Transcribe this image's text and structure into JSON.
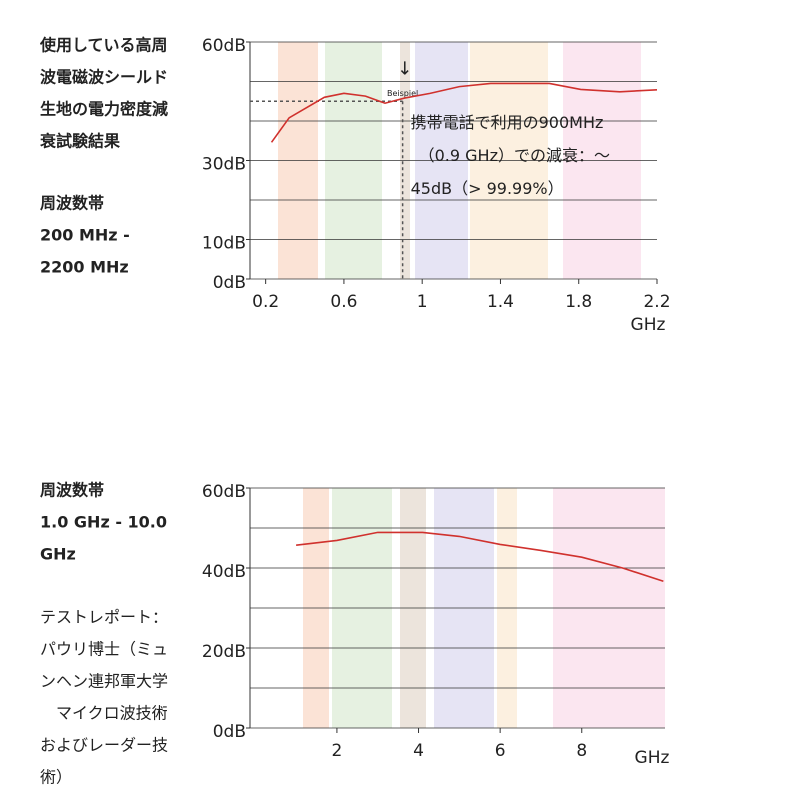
{
  "section1": {
    "title_lines": [
      "使用している高周",
      "波電磁波シールド",
      "生地の電力密度減",
      "衰試験結果"
    ],
    "band_lines": [
      "周波数帯",
      "200 MHz -",
      "2200 MHz"
    ]
  },
  "section2": {
    "band_lines": [
      "周波数帯",
      "1.0 GHz - 10.0",
      "GHz"
    ],
    "report_lines": [
      "テストレポート：",
      "パウリ博士（ミュ",
      "ンヘン連邦軍大学",
      "　マイクロ波技術",
      "およびレーダー技",
      "術）"
    ]
  },
  "chart_data": [
    {
      "type": "line",
      "x_label": "GHz",
      "color": "#d0312d",
      "x": [
        0.23,
        0.32,
        0.5,
        0.6,
        0.71,
        0.81,
        0.91,
        1.04,
        1.19,
        1.35,
        1.65,
        1.81,
        2.01,
        2.2
      ],
      "values": [
        34.6,
        40.8,
        46,
        47,
        46.3,
        44.5,
        45.8,
        47,
        48.7,
        49.5,
        49.5,
        48,
        47.4,
        47.9
      ],
      "xlim": [
        0.12,
        2.2
      ],
      "xticks": [
        0.2,
        0.6,
        1.0,
        1.4,
        1.8,
        2.2
      ],
      "ylim": [
        0,
        60
      ],
      "yticks": [
        {
          "value": 0,
          "label": "0dB"
        },
        {
          "value": 10,
          "label": "10dB"
        },
        {
          "value": 30,
          "label": "30dB"
        },
        {
          "value": 60,
          "label": "60dB"
        }
      ],
      "minor_yticks": [
        0,
        10,
        20,
        30,
        40,
        50,
        60
      ],
      "annotation_point": {
        "x": 0.9,
        "y": 45
      },
      "marker_label": "Beispiel",
      "arrow": "↓",
      "annotation_lines": [
        "携帯電話で利用の900MHz",
        "（0.9 GHz）での減衰：～",
        "45dB（> 99.99%）"
      ]
    },
    {
      "type": "line",
      "x_label": "GHz",
      "color": "#d0312d",
      "x": [
        1.0,
        2.0,
        3.0,
        4.1,
        5.0,
        6.0,
        7.0,
        8.0,
        9.0,
        10.0
      ],
      "values": [
        45.7,
        46.9,
        48.9,
        48.9,
        47.9,
        45.9,
        44.4,
        42.7,
        40,
        36.7
      ],
      "xlim": [
        -0.13,
        10.04
      ],
      "xticks": [
        2.0,
        4.0,
        6.0,
        8.0
      ],
      "ylim": [
        0,
        60
      ],
      "yticks": [
        {
          "value": 0,
          "label": "0dB"
        },
        {
          "value": 20,
          "label": "20dB"
        },
        {
          "value": 40,
          "label": "40dB"
        },
        {
          "value": 60,
          "label": "60dB"
        }
      ],
      "minor_yticks": [
        0,
        10,
        20,
        30,
        40,
        50,
        60
      ]
    }
  ]
}
